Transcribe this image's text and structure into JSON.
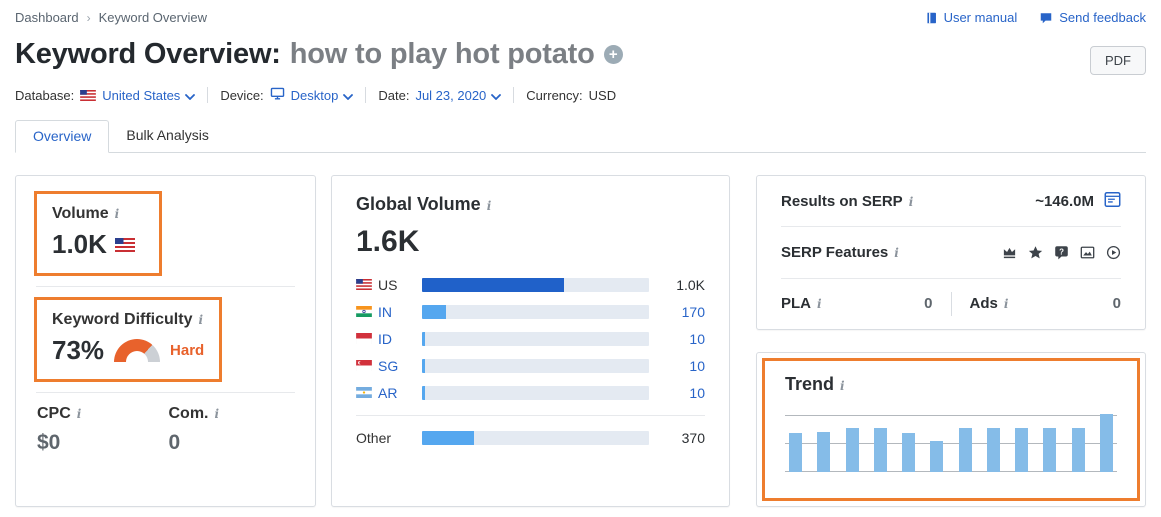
{
  "breadcrumb": {
    "items": [
      "Dashboard",
      "Keyword Overview"
    ]
  },
  "header": {
    "links": [
      {
        "label": "User manual"
      },
      {
        "label": "Send feedback"
      }
    ],
    "title_prefix": "Keyword Overview:",
    "keyword": "how to play hot potato",
    "pdf_label": "PDF"
  },
  "filters": {
    "database_label": "Database:",
    "database_value": "United States",
    "device_label": "Device:",
    "device_value": "Desktop",
    "date_label": "Date:",
    "date_value": "Jul 23, 2020",
    "currency_label": "Currency:",
    "currency_value": "USD"
  },
  "tabs": [
    {
      "label": "Overview",
      "active": true
    },
    {
      "label": "Bulk Analysis",
      "active": false
    }
  ],
  "volume_card": {
    "volume_label": "Volume",
    "volume_value": "1.0K",
    "volume_country": "US",
    "kd_label": "Keyword Difficulty",
    "kd_value": "73%",
    "kd_percent": 73,
    "kd_rating": "Hard",
    "cpc_label": "CPC",
    "cpc_value": "$0",
    "com_label": "Com.",
    "com_value": "0"
  },
  "global_volume_card": {
    "title": "Global Volume",
    "total_label": "1.6K",
    "total": 1600,
    "rows": [
      {
        "country": "US",
        "value_label": "1.0K",
        "value": 1000,
        "link": false,
        "emphasis": true
      },
      {
        "country": "IN",
        "value_label": "170",
        "value": 170,
        "link": true,
        "emphasis": false
      },
      {
        "country": "ID",
        "value_label": "10",
        "value": 10,
        "link": true,
        "emphasis": false
      },
      {
        "country": "SG",
        "value_label": "10",
        "value": 10,
        "link": true,
        "emphasis": false
      },
      {
        "country": "AR",
        "value_label": "10",
        "value": 10,
        "link": true,
        "emphasis": false
      }
    ],
    "other": {
      "label": "Other",
      "value_label": "370",
      "value": 370
    }
  },
  "serp_card": {
    "results_label": "Results on SERP",
    "results_value": "~146.0M",
    "features_label": "SERP Features",
    "features": [
      "knowledge-panel-crown",
      "reviews-star",
      "people-also-ask",
      "images",
      "video"
    ],
    "pla_label": "PLA",
    "pla_value": "0",
    "ads_label": "Ads",
    "ads_value": "0"
  },
  "trend_card": {
    "title": "Trend"
  },
  "colors": {
    "link_blue": "#2864c8",
    "highlight_orange": "#ee7d2e",
    "kd_orange": "#e8622c",
    "gauge_rest_gray": "#ccd0d5",
    "bar_dark_blue": "#2061c9",
    "bar_light_blue": "#55a7ef",
    "bar_track": "#e4eaf2",
    "trend_bar_blue": "#85bce8"
  },
  "chart_data": [
    {
      "type": "bar",
      "orientation": "horizontal",
      "title": "Global Volume by country",
      "categories": [
        "US",
        "IN",
        "ID",
        "SG",
        "AR",
        "Other"
      ],
      "values": [
        1000,
        170,
        10,
        10,
        10,
        370
      ],
      "value_labels": [
        "1.0K",
        "170",
        "10",
        "10",
        "10",
        "370"
      ],
      "total": 1600,
      "total_label": "1.6K",
      "xlabel": "",
      "ylabel": "",
      "legend": false
    },
    {
      "type": "bar",
      "title": "Trend",
      "values": [
        0.68,
        0.69,
        0.76,
        0.76,
        0.68,
        0.54,
        0.76,
        0.76,
        0.76,
        0.76,
        0.76,
        1.0
      ],
      "ylim": [
        0,
        1
      ],
      "xticks_visible": false,
      "yticks_visible": false,
      "grid": true,
      "num_gridlines": 3,
      "xlabel": "",
      "ylabel": ""
    }
  ]
}
